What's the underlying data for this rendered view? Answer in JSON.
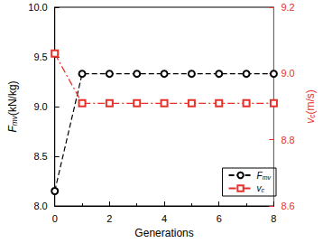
{
  "chart_data": {
    "type": "line",
    "x_label": "Generations",
    "y_label": "Fmv(kN/kg)",
    "y2_label": "vc(m/s)",
    "x": [
      0,
      1,
      2,
      3,
      4,
      5,
      6,
      7,
      8
    ],
    "xlim": [
      0,
      8
    ],
    "xticks": [
      0,
      2,
      4,
      6,
      8
    ],
    "ylim": [
      8,
      10
    ],
    "yticks": [
      {
        "value": 8,
        "label": "8.0"
      },
      {
        "value": 8.5,
        "label": "8.5"
      },
      {
        "value": 9,
        "label": "9.0"
      },
      {
        "value": 9.5,
        "label": "9.5"
      },
      {
        "value": 10,
        "label": "10.0"
      }
    ],
    "y2lim": [
      8.6,
      9.2
    ],
    "y2ticks": [
      8.6,
      8.8,
      {
        "value": 9,
        "label": "9.0"
      },
      9.2
    ],
    "legend": "lower right",
    "series": [
      {
        "name": "Fmv",
        "color": "#000000",
        "marker": "circle",
        "line_style": "dashed",
        "values": [
          8.15,
          9.33,
          9.33,
          9.33,
          9.33,
          9.33,
          9.33,
          9.33,
          9.33
        ]
      },
      {
        "name": "vc",
        "color": "#e8302a",
        "marker": "square",
        "line_style": "dashdot",
        "axis": "y2",
        "values": [
          9.06,
          8.91,
          8.91,
          8.91,
          8.91,
          8.91,
          8.91,
          8.91,
          8.91
        ]
      }
    ]
  }
}
